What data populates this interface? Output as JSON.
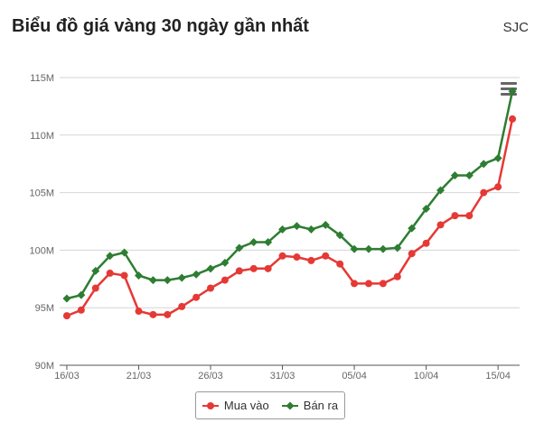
{
  "title": "Biểu đồ giá vàng 30 ngày gần nhất",
  "source_label": "SJC",
  "menu_icon": "hamburger-menu-icon",
  "chart_data": {
    "type": "line",
    "x": [
      "16/03",
      "17/03",
      "18/03",
      "19/03",
      "20/03",
      "21/03",
      "22/03",
      "23/03",
      "24/03",
      "25/03",
      "26/03",
      "27/03",
      "28/03",
      "29/03",
      "30/03",
      "31/03",
      "01/04",
      "02/04",
      "03/04",
      "04/04",
      "05/04",
      "06/04",
      "07/04",
      "08/04",
      "09/04",
      "10/04",
      "11/04",
      "12/04",
      "13/04",
      "14/04",
      "15/04",
      "16/04"
    ],
    "x_tick_labels": [
      "16/03",
      "21/03",
      "26/03",
      "31/03",
      "05/04",
      "10/04",
      "15/04"
    ],
    "y_tick_labels": [
      "90M",
      "95M",
      "100M",
      "105M",
      "110M",
      "115M"
    ],
    "ylim": [
      90,
      115
    ],
    "y_unit": "M",
    "series": [
      {
        "name": "Mua vào",
        "color": "#e53935",
        "marker": "circle",
        "values": [
          94.3,
          94.8,
          96.7,
          98.0,
          97.8,
          94.7,
          94.4,
          94.4,
          95.1,
          95.9,
          96.7,
          97.4,
          98.2,
          98.4,
          98.4,
          99.5,
          99.4,
          99.1,
          99.5,
          98.8,
          97.1,
          97.1,
          97.1,
          97.7,
          99.7,
          100.6,
          102.2,
          103.0,
          103.0,
          105.0,
          105.5,
          111.4
        ]
      },
      {
        "name": "Bán ra",
        "color": "#2e7d32",
        "marker": "diamond",
        "values": [
          95.8,
          96.1,
          98.2,
          99.5,
          99.8,
          97.8,
          97.4,
          97.4,
          97.6,
          97.9,
          98.4,
          98.9,
          100.2,
          100.7,
          100.7,
          101.8,
          102.1,
          101.8,
          102.2,
          101.3,
          100.1,
          100.1,
          100.1,
          100.2,
          101.9,
          103.6,
          105.2,
          106.5,
          106.5,
          107.5,
          108.0,
          113.8
        ]
      }
    ],
    "grid": true,
    "legend_position": "bottom-center"
  }
}
